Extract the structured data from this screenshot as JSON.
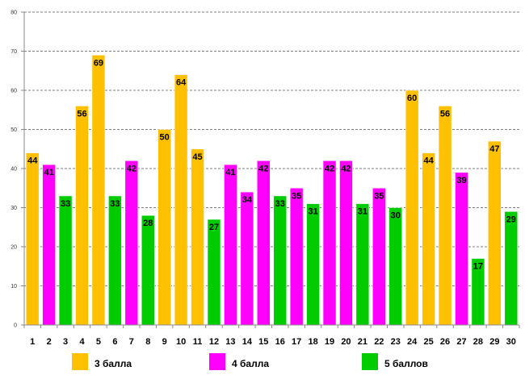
{
  "chart_data": {
    "type": "bar",
    "categories": [
      "1",
      "2",
      "3",
      "4",
      "5",
      "6",
      "7",
      "8",
      "9",
      "10",
      "11",
      "12",
      "13",
      "14",
      "15",
      "16",
      "17",
      "18",
      "19",
      "20",
      "21",
      "22",
      "23",
      "24",
      "25",
      "26",
      "27",
      "28",
      "29",
      "30"
    ],
    "values": [
      44,
      41,
      33,
      56,
      69,
      33,
      42,
      28,
      50,
      64,
      45,
      27,
      41,
      34,
      42,
      33,
      35,
      31,
      42,
      42,
      31,
      35,
      30,
      60,
      44,
      56,
      39,
      17,
      47,
      29
    ],
    "groups": [
      "3",
      "4",
      "5",
      "3",
      "3",
      "5",
      "4",
      "5",
      "3",
      "3",
      "3",
      "5",
      "4",
      "4",
      "4",
      "5",
      "4",
      "5",
      "4",
      "4",
      "5",
      "4",
      "5",
      "3",
      "3",
      "3",
      "4",
      "5",
      "3",
      "5"
    ],
    "yticks": [
      "0",
      "10",
      "20",
      "30",
      "40",
      "50",
      "60",
      "70",
      "80"
    ],
    "ylim": [
      0,
      80
    ],
    "grid": true,
    "legend_position": "bottom",
    "legend": [
      {
        "key": "3",
        "label": "3 балла",
        "color": "#FFC000"
      },
      {
        "key": "4",
        "label": "4 балла",
        "color": "#FF00FF"
      },
      {
        "key": "5",
        "label": "5 баллов",
        "color": "#00CC00"
      }
    ]
  }
}
